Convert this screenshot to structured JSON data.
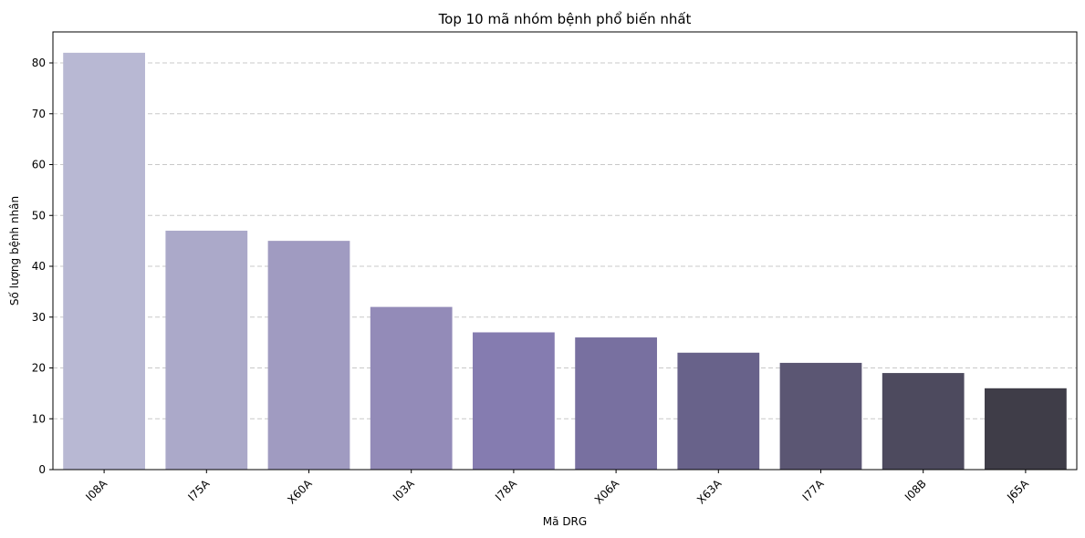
{
  "chart_data": {
    "type": "bar",
    "title": "Top 10 mã nhóm bệnh phổ biến nhất",
    "xlabel": "Mã DRG",
    "ylabel": "Số lượng bệnh nhân",
    "categories": [
      "I08A",
      "I75A",
      "X60A",
      "I03A",
      "I78A",
      "X06A",
      "X63A",
      "I77A",
      "I08B",
      "J65A"
    ],
    "values": [
      82,
      47,
      45,
      32,
      27,
      26,
      23,
      21,
      19,
      16
    ],
    "ylim": [
      0,
      86.1
    ],
    "yticks": [
      0,
      10,
      20,
      30,
      40,
      50,
      60,
      70,
      80
    ],
    "grid": "y-dashed",
    "colors": [
      "#b8b8d3",
      "#aba9c9",
      "#a09bc1",
      "#938bb8",
      "#857cb0",
      "#7870a0",
      "#68628a",
      "#5b5673",
      "#4d4a5e",
      "#3f3d48"
    ]
  }
}
